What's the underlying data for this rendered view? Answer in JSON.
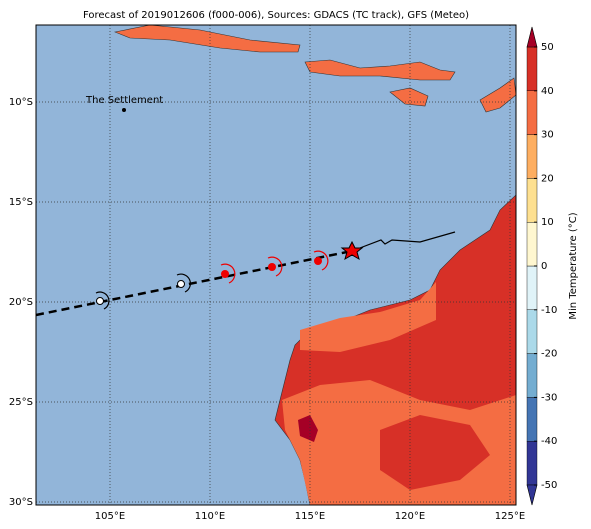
{
  "map": {
    "title": "Forecast of 2019012606 (f000-006), Sources: GDACS (TC track), GFS (Meteo)",
    "place_label": "The Settlement",
    "lon_lim": [
      101.3,
      125.3
    ],
    "lat_lim": [
      -6.15,
      -30.15
    ],
    "lon_ticks": [
      {
        "value": 105,
        "label": "105°E"
      },
      {
        "value": 110,
        "label": "110°E"
      },
      {
        "value": 115,
        "label": "115°E"
      },
      {
        "value": 120,
        "label": "120°E"
      },
      {
        "value": 125,
        "label": "125°E"
      }
    ],
    "lat_ticks": [
      {
        "value": -10,
        "label": "10°S"
      },
      {
        "value": -15,
        "label": "15°S"
      },
      {
        "value": -20,
        "label": "20°S"
      },
      {
        "value": -25,
        "label": "25°S"
      },
      {
        "value": -30,
        "label": "30°S"
      }
    ],
    "colorbar": {
      "label": "Min Temperature (°C)",
      "lim": [
        -50,
        50
      ],
      "ticks": [
        -50,
        -40,
        -30,
        -20,
        -10,
        0,
        10,
        20,
        30,
        40,
        50
      ],
      "colors": [
        "#313695",
        "#4575b4",
        "#74add1",
        "#abd9e9",
        "#e0f3f8",
        "#fff7d0",
        "#fee090",
        "#fdae61",
        "#f46d43",
        "#d73027",
        "#a50026"
      ]
    }
  }
}
